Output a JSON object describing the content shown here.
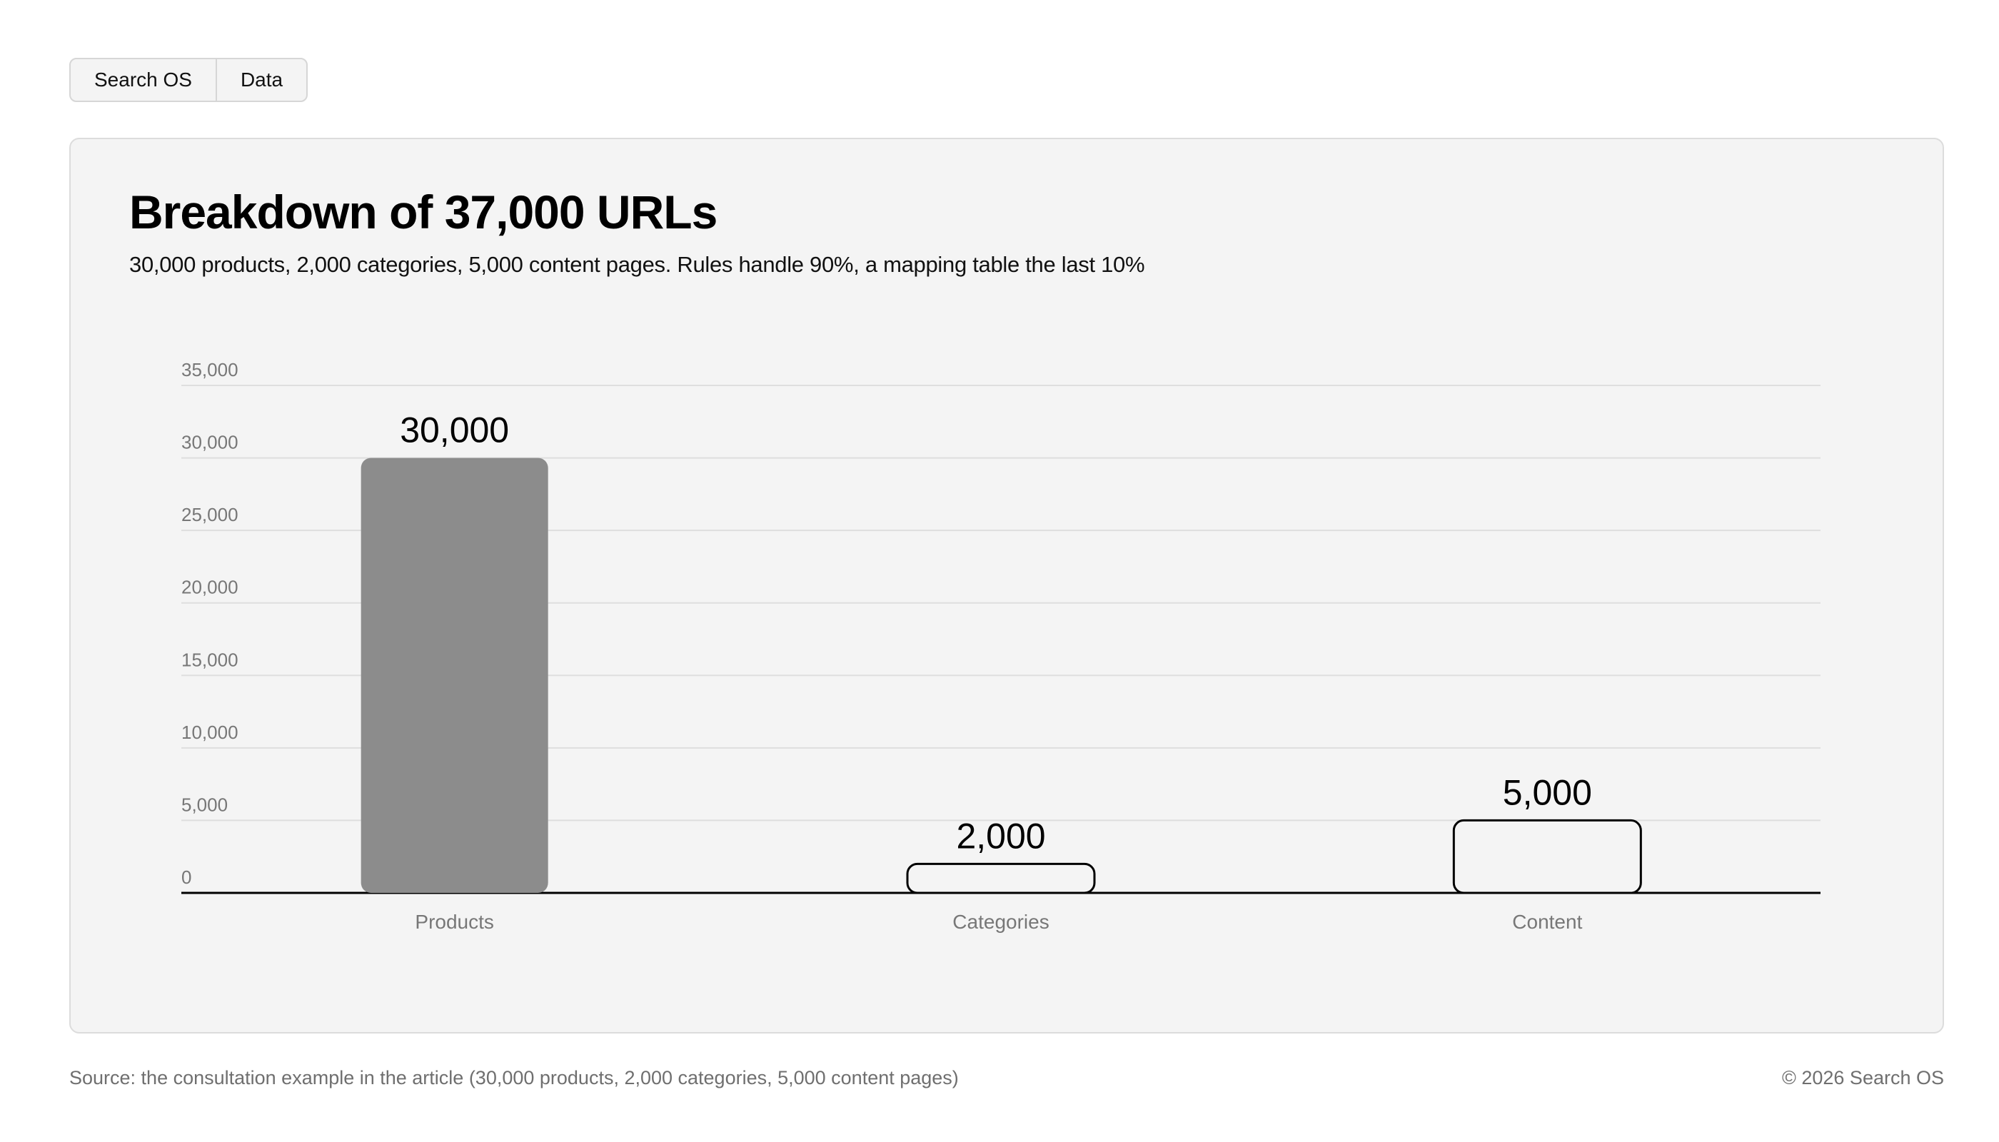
{
  "tabs": [
    {
      "label": "Search OS"
    },
    {
      "label": "Data"
    }
  ],
  "chart_data": {
    "type": "bar",
    "title": "Breakdown of 37,000 URLs",
    "subtitle": "30,000 products, 2,000 categories, 5,000 content pages. Rules handle 90%, a mapping table the last 10%",
    "categories": [
      "Products",
      "Categories",
      "Content"
    ],
    "values": [
      30000,
      2000,
      5000
    ],
    "value_labels": [
      "30,000",
      "2,000",
      "5,000"
    ],
    "bar_styles": [
      "filled",
      "outline",
      "outline"
    ],
    "ylim": [
      0,
      35000
    ],
    "yticks": [
      0,
      5000,
      10000,
      15000,
      20000,
      25000,
      30000,
      35000
    ],
    "ytick_labels": [
      "0",
      "5,000",
      "10,000",
      "15,000",
      "20,000",
      "25,000",
      "30,000",
      "35,000"
    ],
    "grid": true,
    "colors": {
      "filled": "#8c8c8c",
      "outline": "#000000",
      "grid": "#dedede",
      "axis": "#000000"
    }
  },
  "footer": {
    "source": "Source: the consultation example in the article (30,000 products, 2,000 categories, 5,000 content pages)",
    "copyright": "© 2026 Search OS"
  }
}
